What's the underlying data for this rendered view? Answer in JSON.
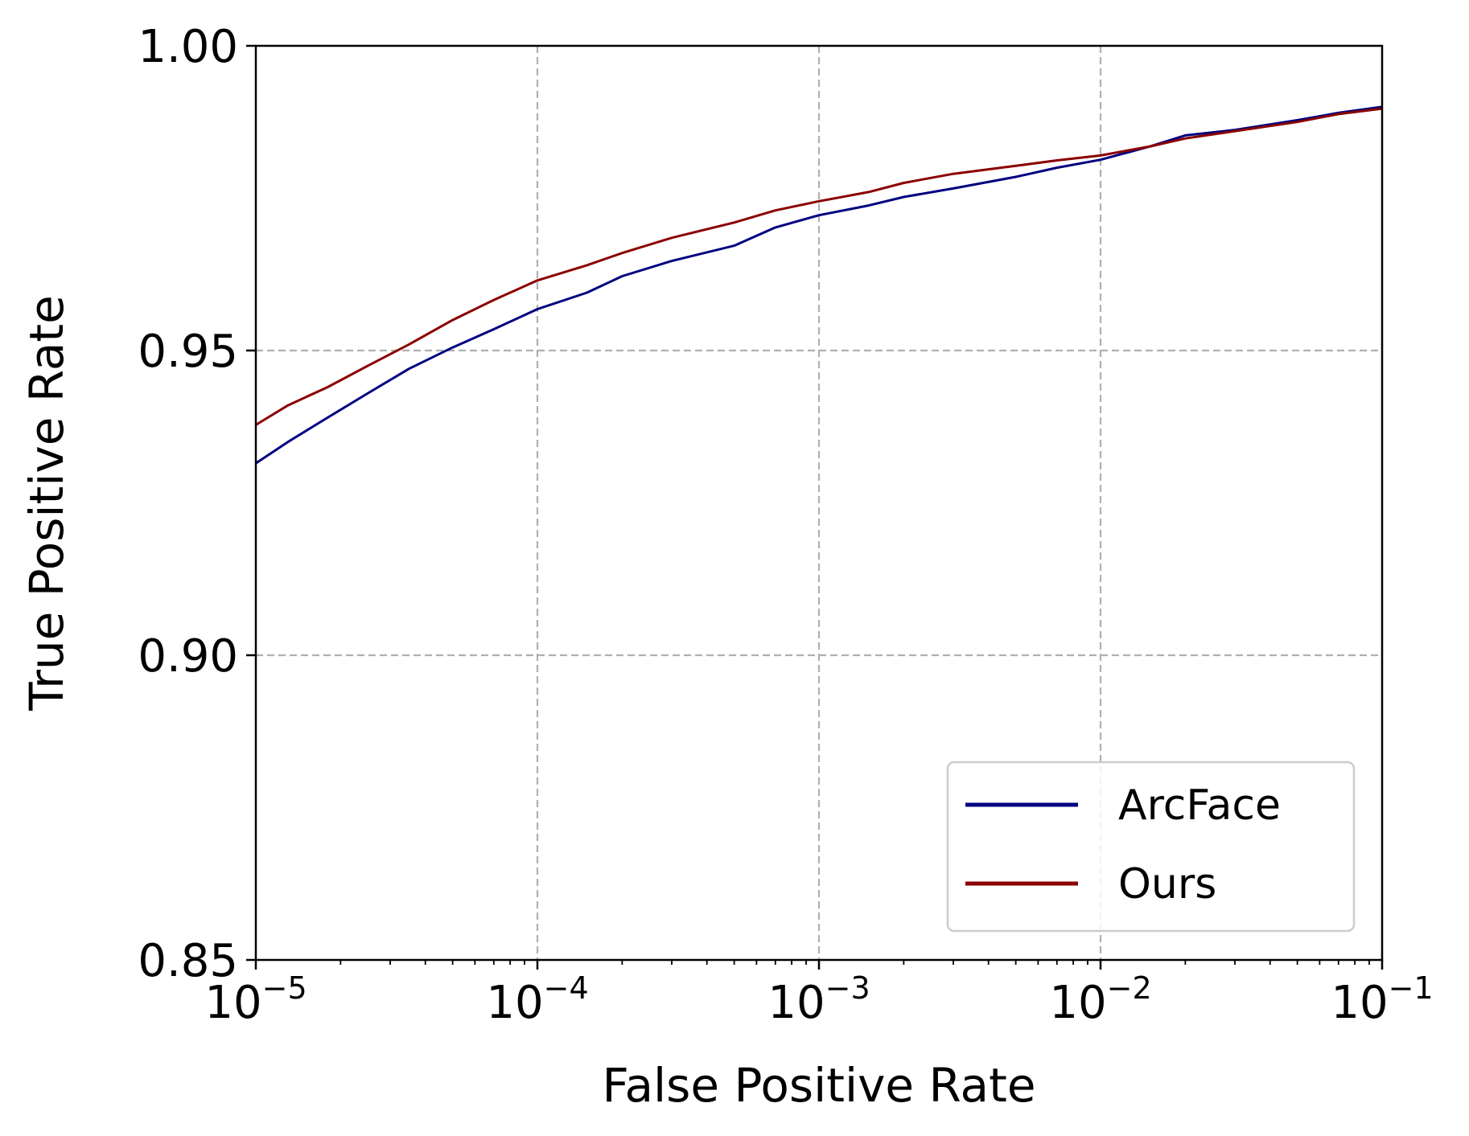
{
  "chart_data": {
    "type": "line",
    "xlabel": "False Positive Rate",
    "ylabel": "True Positive Rate",
    "xscale": "log",
    "xlim": [
      1e-05,
      0.1
    ],
    "ylim": [
      0.85,
      1.0
    ],
    "grid": true,
    "legend_position": "lower-right",
    "x_ticks": [
      {
        "base": "10",
        "exp": "−5",
        "value": 1e-05
      },
      {
        "base": "10",
        "exp": "−4",
        "value": 0.0001
      },
      {
        "base": "10",
        "exp": "−3",
        "value": 0.001
      },
      {
        "base": "10",
        "exp": "−2",
        "value": 0.01
      },
      {
        "base": "10",
        "exp": "−1",
        "value": 0.1
      }
    ],
    "y_ticks": [
      {
        "label": "0.85",
        "value": 0.85
      },
      {
        "label": "0.90",
        "value": 0.9
      },
      {
        "label": "0.95",
        "value": 0.95
      },
      {
        "label": "1.00",
        "value": 1.0
      }
    ],
    "series": [
      {
        "name": "ArcFace",
        "color": "#000080",
        "x": [
          1e-05,
          1.3e-05,
          1.8e-05,
          2.5e-05,
          3.5e-05,
          5e-05,
          7e-05,
          0.0001,
          0.00015,
          0.0002,
          0.0003,
          0.0005,
          0.0007,
          0.001,
          0.0015,
          0.002,
          0.003,
          0.005,
          0.007,
          0.01,
          0.015,
          0.02,
          0.03,
          0.05,
          0.07,
          0.1
        ],
        "y": [
          0.9315,
          0.935,
          0.939,
          0.943,
          0.947,
          0.9505,
          0.9535,
          0.9568,
          0.9595,
          0.9622,
          0.9647,
          0.9672,
          0.9702,
          0.9722,
          0.9738,
          0.9752,
          0.9766,
          0.9785,
          0.98,
          0.9813,
          0.9835,
          0.9853,
          0.9862,
          0.9878,
          0.989,
          0.99
        ]
      },
      {
        "name": "Ours",
        "color": "#8B0000",
        "x": [
          1e-05,
          1.3e-05,
          1.8e-05,
          2.5e-05,
          3.5e-05,
          5e-05,
          7e-05,
          0.0001,
          0.00015,
          0.0002,
          0.0003,
          0.0005,
          0.0007,
          0.001,
          0.0015,
          0.002,
          0.003,
          0.005,
          0.007,
          0.01,
          0.015,
          0.02,
          0.03,
          0.05,
          0.07,
          0.1
        ],
        "y": [
          0.9378,
          0.941,
          0.944,
          0.9475,
          0.951,
          0.955,
          0.9583,
          0.9615,
          0.964,
          0.966,
          0.9685,
          0.971,
          0.973,
          0.9745,
          0.976,
          0.9775,
          0.979,
          0.9803,
          0.9812,
          0.982,
          0.9835,
          0.9848,
          0.986,
          0.9875,
          0.9888,
          0.9897
        ]
      }
    ]
  }
}
